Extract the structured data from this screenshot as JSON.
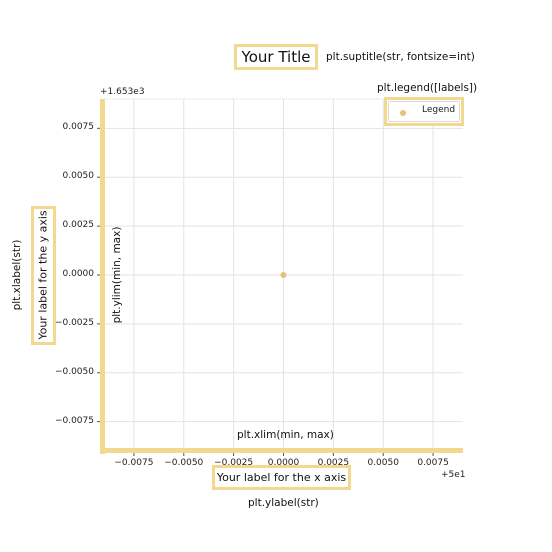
{
  "chart_data": {
    "type": "scatter",
    "title": "Your Title",
    "xlabel": "Your label for the x axis",
    "ylabel": "Your label for the y axis",
    "x_offset_label": "+5e1",
    "y_offset_label": "+1.653e3",
    "xlim": [
      -0.009,
      0.009
    ],
    "ylim": [
      -0.009,
      0.009
    ],
    "x_ticks": [
      -0.0075,
      -0.005,
      -0.0025,
      0.0,
      0.0025,
      0.005,
      0.0075
    ],
    "x_tick_labels": [
      "−0.0075",
      "−0.0050",
      "−0.0025",
      "0.0000",
      "0.0025",
      "0.0050",
      "0.0075"
    ],
    "y_ticks": [
      0.0075,
      0.005,
      0.0025,
      0.0,
      -0.0025,
      -0.005,
      -0.0075
    ],
    "y_tick_labels": [
      "0.0075",
      "0.0050",
      "0.0025",
      "0.0000",
      "−0.0025",
      "−0.0050",
      "−0.0075"
    ],
    "grid": true,
    "legend_placement": "upper-right",
    "series": [
      {
        "name": "Legend",
        "color": "#e6c17a",
        "points": [
          [
            0.0,
            0.0
          ]
        ]
      }
    ],
    "highlight_color": "#f3d98f"
  },
  "annotations": {
    "suptitle": "plt.suptitle(str, fontsize=int)",
    "legend": "plt.legend([labels])",
    "xlabel_func": "plt.xlabel(str)",
    "ylabel_func": "plt.ylabel(str)",
    "xlim": "plt.xlim(min, max)",
    "ylim": "plt.ylim(min, max)"
  }
}
